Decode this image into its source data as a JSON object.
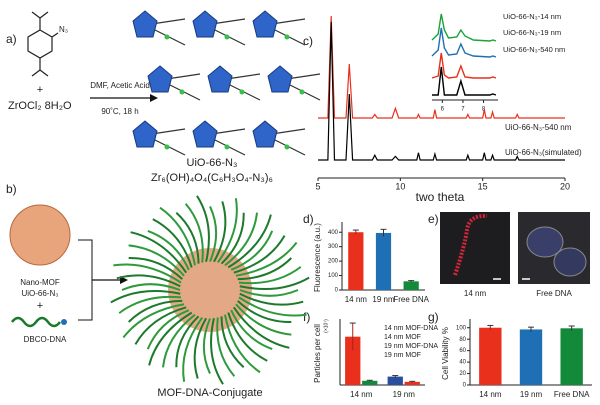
{
  "figure": {
    "panel_labels": [
      "a)",
      "b)",
      "c)",
      "d)",
      "e)",
      "f)",
      "g)"
    ],
    "a": {
      "reactant_n3": "N₃",
      "plus": "+",
      "salt": "ZrOCl₂ 8H₂O",
      "conditions_1": "DMF, Acetic Acid",
      "conditions_2": "90˚C, 18 h",
      "product": "UiO-66-N₃",
      "formula": "Zr₆(OH)₄O₄(C₆H₃O₄-N₃)₆"
    },
    "b": {
      "mof": "Nano-MOF",
      "mof_name": "UiO-66-N₃",
      "plus": "+",
      "dna": "DBCO-DNA",
      "conjugate": "MOF-DNA-Conjugate"
    },
    "e": {
      "labels": [
        "14 nm",
        "Free DNA"
      ]
    }
  },
  "chart_data": [
    {
      "type": "line",
      "x_label": "two theta",
      "xlim": [
        5,
        20
      ],
      "xticks": [
        5,
        10,
        15,
        20
      ],
      "x": [
        5,
        5.6,
        5.8,
        6.0,
        6.7,
        6.9,
        7.1,
        8.3,
        8.45,
        8.6,
        9.5,
        9.7,
        9.9,
        11.0,
        11.1,
        11.2,
        12.0,
        12.1,
        12.2,
        14.0,
        14.1,
        14.2,
        15.0,
        15.1,
        15.2,
        15.5,
        15.6,
        15.7,
        17.0,
        17.1,
        17.2,
        20
      ],
      "series": [
        {
          "name": "UiO-66-N₃-540 nm",
          "color": "#e8301c",
          "values": [
            0,
            0,
            85,
            0,
            0,
            45,
            0,
            0,
            3,
            0,
            0,
            8,
            0,
            0,
            3,
            0,
            0,
            7,
            0,
            0,
            3,
            0,
            0,
            7,
            0,
            0,
            5,
            0,
            0,
            3,
            0,
            0
          ]
        },
        {
          "name": "UiO-66-N₃(simulated)",
          "color": "#000000",
          "values": [
            0,
            0,
            115,
            0,
            0,
            55,
            0,
            0,
            4,
            0,
            0,
            3,
            0,
            0,
            6,
            0,
            0,
            5,
            0,
            0,
            4,
            0,
            0,
            6,
            0,
            0,
            4,
            0,
            0,
            3,
            0,
            0
          ]
        }
      ]
    },
    {
      "type": "line",
      "xlim": [
        5.5,
        8.7
      ],
      "xticks": [
        6,
        7,
        8
      ],
      "x": [
        5.5,
        5.8,
        5.95,
        6.1,
        6.3,
        6.7,
        6.9,
        7.1,
        7.5,
        8.3,
        8.45,
        8.6
      ],
      "series": [
        {
          "name": "UiO-66-N₃-14 nm",
          "color": "#19a33a",
          "values": [
            2,
            8,
            28,
            12,
            4,
            5,
            12,
            6,
            2,
            1,
            2,
            1
          ]
        },
        {
          "name": "UiO-66-N₃-19 nm",
          "color": "#1f6fb4",
          "values": [
            2,
            8,
            30,
            10,
            3,
            4,
            14,
            5,
            2,
            1,
            2,
            1
          ]
        },
        {
          "name": "UiO-66-N₃-540 nm",
          "color": "#e8301c",
          "values": [
            0,
            2,
            25,
            3,
            0,
            1,
            12,
            1,
            0,
            0,
            1,
            0
          ]
        },
        {
          "color": "#000000",
          "values": [
            0,
            0,
            28,
            0,
            0,
            0,
            14,
            0,
            0,
            0,
            1,
            0
          ]
        }
      ]
    },
    {
      "type": "bar",
      "y_label": "Fluorescence (a.u.)",
      "categories": [
        "14 nm",
        "19 nm",
        "Free DNA"
      ],
      "values": [
        400,
        395,
        60
      ],
      "errors": [
        15,
        25,
        5
      ],
      "colors": [
        "#e8301c",
        "#1f6fb4",
        "#138a3a"
      ],
      "ylim": [
        0,
        450
      ],
      "yticks": [
        0,
        100,
        200,
        300,
        400
      ]
    },
    {
      "type": "bar",
      "y_label": "Particles per cell",
      "y_unit": "(×10⁷)",
      "categories": [
        "14 nm",
        "19 nm"
      ],
      "ylim": [
        0,
        6
      ],
      "series": [
        {
          "name": "14 nm MOF-DNA",
          "color": "#e8301c",
          "values": [
            4.6,
            null
          ],
          "errors": [
            1.3,
            null
          ]
        },
        {
          "name": "14 nm MOF",
          "color": "#138a3a",
          "values": [
            0.4,
            null
          ],
          "errors": [
            0.05,
            null
          ]
        },
        {
          "name": "19 nm MOF-DNA",
          "color": "#2a4f9f",
          "values": [
            null,
            0.8
          ],
          "errors": [
            null,
            0.1
          ]
        },
        {
          "name": "19 nm MOF",
          "color": "#e8301c",
          "values": [
            null,
            0.3
          ],
          "errors": [
            null,
            0.05
          ]
        }
      ]
    },
    {
      "type": "bar",
      "y_label": "Cell Viability %",
      "categories": [
        "14 nm",
        "19 nm",
        "Free DNA"
      ],
      "values": [
        100,
        97,
        99
      ],
      "errors": [
        4,
        4,
        4
      ],
      "colors": [
        "#e8301c",
        "#1f6fb4",
        "#138a3a"
      ],
      "ylim": [
        0,
        110
      ],
      "yticks": [
        0,
        20,
        40,
        60,
        80,
        100
      ]
    }
  ]
}
